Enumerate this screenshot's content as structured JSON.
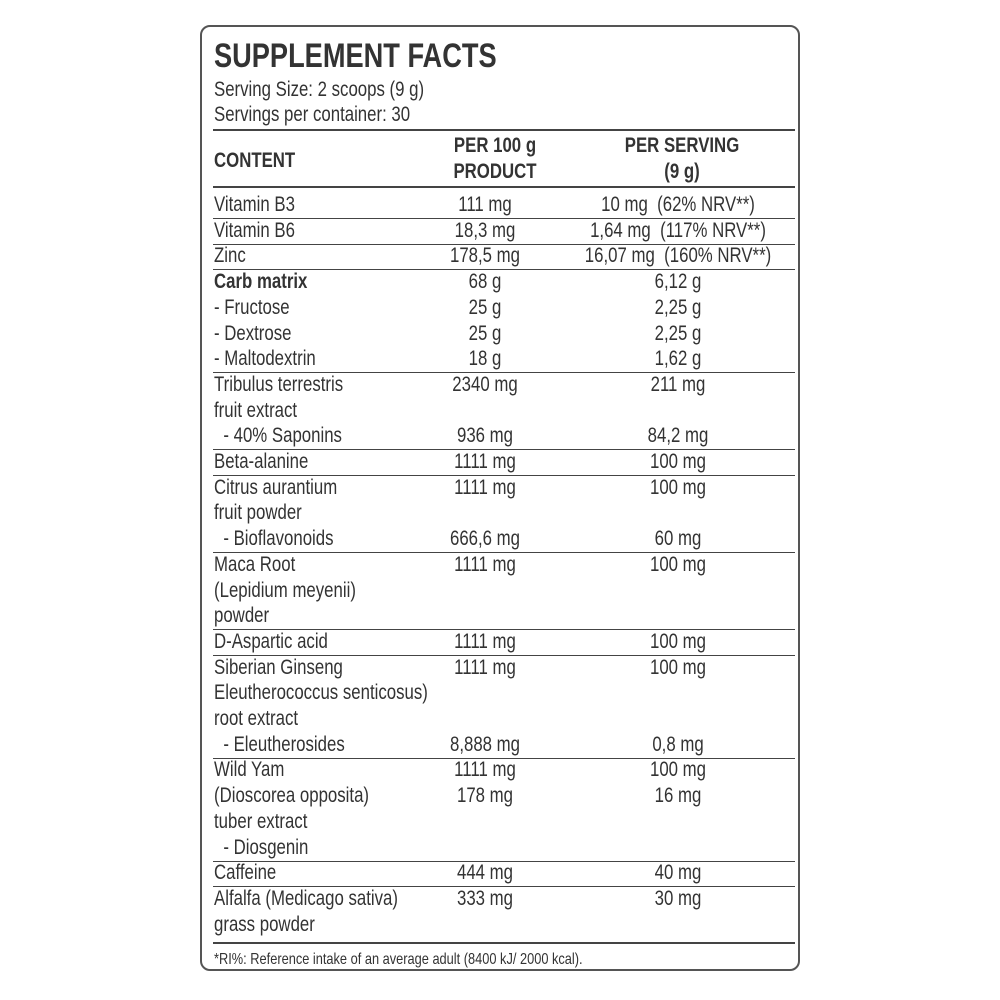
{
  "header": {
    "title": "SUPPLEMENT FACTS",
    "serving_size": "Serving Size: 2 scoops (9 g)",
    "servings_per_container": "Servings per container: 30"
  },
  "table": {
    "columns": {
      "content": "CONTENT",
      "per_100g": [
        "PER 100 g",
        "PRODUCT"
      ],
      "per_serving": [
        "PER SERVING",
        "(9 g)"
      ]
    },
    "groups": [
      [
        {
          "name": "Vitamin B3",
          "per_100g": "111 mg",
          "per_serving": "10 mg  (62% NRV**)"
        }
      ],
      [
        {
          "name": "Vitamin B6",
          "per_100g": "18,3 mg",
          "per_serving": "1,64 mg  (117% NRV**)"
        }
      ],
      [
        {
          "name": "Zinc",
          "per_100g": "178,5 mg",
          "per_serving": "16,07 mg  (160% NRV**)"
        }
      ],
      [
        {
          "name": "Carb matrix",
          "per_100g": "68 g",
          "per_serving": "6,12 g"
        },
        {
          "name": "- Fructose",
          "per_100g": "25 g",
          "per_serving": "2,25 g"
        },
        {
          "name": "- Dextrose",
          "per_100g": "25 g",
          "per_serving": "2,25 g"
        },
        {
          "name": "- Maltodextrin",
          "per_100g": "18 g",
          "per_serving": "1,62 g"
        }
      ],
      [
        {
          "name": "Tribulus terrestris",
          "per_100g": "2340 mg",
          "per_serving": "211 mg"
        },
        {
          "name": "fruit extract"
        },
        {
          "name": "  - 40% Saponins",
          "per_100g": "936 mg",
          "per_serving": "84,2 mg"
        }
      ],
      [
        {
          "name": "Beta-alanine",
          "per_100g": "1111 mg",
          "per_serving": "100 mg"
        }
      ],
      [
        {
          "name": "Citrus aurantium",
          "per_100g": "1111 mg",
          "per_serving": "100 mg"
        },
        {
          "name": "fruit powder"
        },
        {
          "name": "  - Bioflavonoids",
          "per_100g": "666,6 mg",
          "per_serving": "60 mg"
        }
      ],
      [
        {
          "name": "Maca Root",
          "per_100g": "1111 mg",
          "per_serving": "100 mg"
        },
        {
          "name": "(Lepidium meyenii)"
        },
        {
          "name": "powder"
        }
      ],
      [
        {
          "name": "D-Aspartic acid",
          "per_100g": "1111 mg",
          "per_serving": "100 mg"
        }
      ],
      [
        {
          "name": "Siberian Ginseng",
          "per_100g": "1111 mg",
          "per_serving": "100 mg"
        },
        {
          "name": "Eleutherococcus senticosus)"
        },
        {
          "name": "root extract"
        },
        {
          "name": "  - Eleutherosides",
          "per_100g": "8,888 mg",
          "per_serving": "0,8 mg"
        }
      ],
      [
        {
          "name": "Wild Yam",
          "per_100g": "1111 mg",
          "per_serving": "100 mg"
        },
        {
          "name": "(Dioscorea opposita)",
          "per_100g": "178 mg",
          "per_serving": "16 mg"
        },
        {
          "name": "tuber extract"
        },
        {
          "name": "  - Diosgenin"
        }
      ],
      [
        {
          "name": "Caffeine",
          "per_100g": "444 mg",
          "per_serving": "40 mg"
        }
      ],
      [
        {
          "name": "Alfalfa (Medicago sativa)",
          "per_100g": "333 mg",
          "per_serving": "30 mg"
        },
        {
          "name": "grass powder"
        }
      ]
    ]
  },
  "footnote": "*RI%: Reference intake of an average adult (8400 kJ/ 2000 kcal)."
}
